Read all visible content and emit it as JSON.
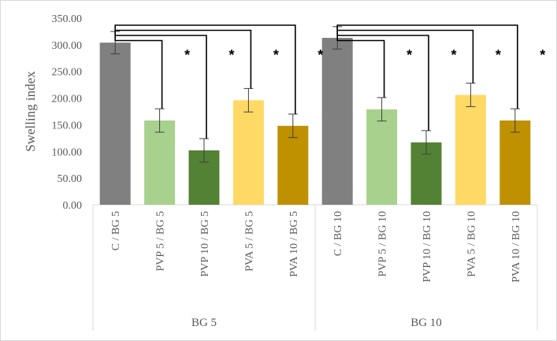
{
  "chart_data": {
    "type": "bar",
    "title": "",
    "xlabel": "",
    "ylabel": "Swelling index",
    "ylim": [
      0,
      350
    ],
    "yticks": [
      0,
      50,
      100,
      150,
      200,
      250,
      300,
      350
    ],
    "ytick_labels": [
      "0.00",
      "50.00",
      "100.00",
      "150.00",
      "200.00",
      "250.00",
      "300.00",
      "350.00"
    ],
    "groups": [
      {
        "name": "BG 5",
        "bars": [
          {
            "label": "C / BG 5",
            "value": 304,
            "error": 21,
            "color": "#808080",
            "star": ""
          },
          {
            "label": "PVP 5 / BG 5",
            "value": 158,
            "error": 22,
            "color": "#a9d18e",
            "star": "*"
          },
          {
            "label": "PVP 10 / BG 5",
            "value": 102,
            "error": 22,
            "color": "#548235",
            "star": "*"
          },
          {
            "label": "PVA 5 / BG 5",
            "value": 196,
            "error": 22,
            "color": "#ffd966",
            "star": "*"
          },
          {
            "label": "PVA 10 / BG 5",
            "value": 148,
            "error": 22,
            "color": "#bf9000",
            "star": "*"
          }
        ]
      },
      {
        "name": "BG 10",
        "bars": [
          {
            "label": "C / BG 10",
            "value": 313,
            "error": 21,
            "color": "#808080",
            "star": ""
          },
          {
            "label": "PVP 5 / BG 10",
            "value": 179,
            "error": 22,
            "color": "#a9d18e",
            "star": "*"
          },
          {
            "label": "PVP 10 / BG 10",
            "value": 117,
            "error": 22,
            "color": "#548235",
            "star": "*"
          },
          {
            "label": "PVA 5 / BG 10",
            "value": 206,
            "error": 22,
            "color": "#ffd966",
            "star": "*"
          },
          {
            "label": "PVA 10 / BG 10",
            "value": 158,
            "error": 22,
            "color": "#bf9000",
            "star": "*"
          }
        ]
      }
    ],
    "grid": false,
    "legend": "none",
    "significance_brackets": "control vs each treatment within group"
  }
}
